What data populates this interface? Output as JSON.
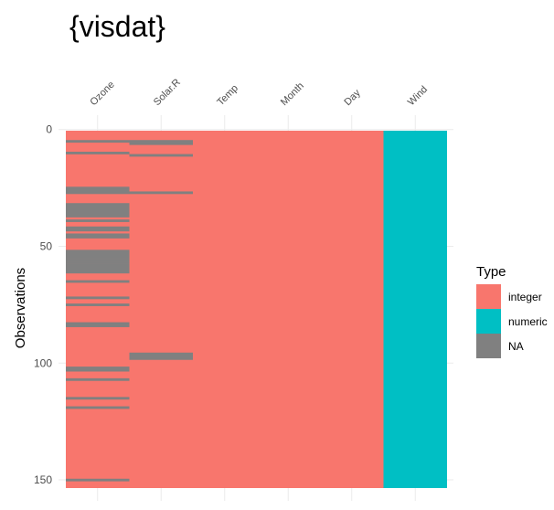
{
  "chart_data": {
    "type": "heatmap",
    "title": "{visdat}",
    "xlabel": "",
    "ylabel": "Observations",
    "columns": [
      "Ozone",
      "Solar.R",
      "Temp",
      "Month",
      "Day",
      "Wind"
    ],
    "column_types": [
      "integer",
      "integer",
      "integer",
      "integer",
      "integer",
      "numeric"
    ],
    "n_observations": 153,
    "y_ticks": [
      0,
      50,
      100,
      150
    ],
    "ylim": [
      0,
      153
    ],
    "missing_rows": {
      "Ozone": [
        5,
        10,
        25,
        26,
        27,
        32,
        33,
        34,
        35,
        36,
        37,
        39,
        42,
        43,
        45,
        46,
        52,
        53,
        54,
        55,
        56,
        57,
        58,
        59,
        60,
        61,
        65,
        72,
        75,
        83,
        84,
        102,
        103,
        107,
        115,
        119,
        150
      ],
      "Solar.R": [
        5,
        6,
        11,
        27,
        96,
        97,
        98
      ],
      "Temp": [],
      "Month": [],
      "Day": [],
      "Wind": []
    },
    "legend": {
      "title": "Type",
      "position": "right",
      "items": [
        {
          "label": "integer",
          "color": "#F8766D"
        },
        {
          "label": "numeric",
          "color": "#00BFC4"
        },
        {
          "label": "NA",
          "color": "#808080"
        }
      ]
    },
    "grid": true
  }
}
